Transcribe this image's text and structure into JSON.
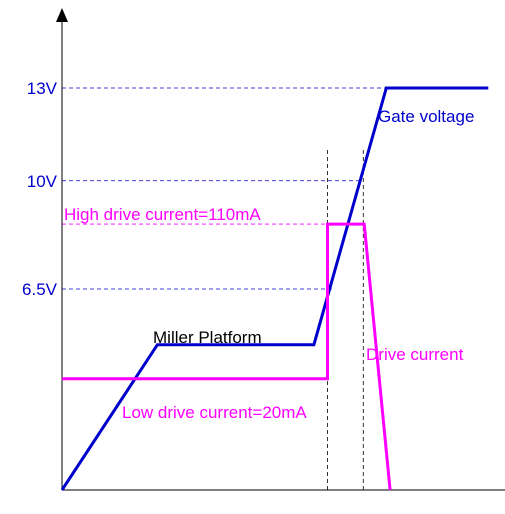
{
  "chart_data": {
    "type": "line",
    "title": "",
    "xlabel": "",
    "ylabel": "",
    "grid": false,
    "xlim": [
      0,
      100
    ],
    "ylim": [
      0,
      15.5
    ],
    "y_ticks": [
      {
        "value": 6.5,
        "label": "6.5V"
      },
      {
        "value": 10,
        "label": "10V"
      },
      {
        "value": 13,
        "label": "13V"
      }
    ],
    "reference_lines": {
      "vertical_x": [
        56.5,
        64.1
      ],
      "horizontal": [
        {
          "y": 13,
          "x_end": 69
        },
        {
          "y": 10,
          "x_end": 64.1
        },
        {
          "y": 8.6,
          "x_end": 56.5
        },
        {
          "y": 6.5,
          "x_end": 58.1
        }
      ]
    },
    "series": [
      {
        "name": "Gate voltage",
        "color": "#0000cc",
        "points": [
          [
            0,
            0
          ],
          [
            20.3,
            4.7
          ],
          [
            53.6,
            4.7
          ],
          [
            69,
            13
          ],
          [
            90.7,
            13
          ]
        ]
      },
      {
        "name": "Drive current",
        "color": "#ff00ff",
        "points": [
          [
            0,
            3.6
          ],
          [
            56.5,
            3.6
          ],
          [
            56.5,
            8.6
          ],
          [
            64.3,
            8.6
          ],
          [
            69.8,
            0
          ]
        ]
      }
    ],
    "annotations": [
      {
        "text": "High drive current=110mA",
        "color": "#ff00ff"
      },
      {
        "text": "Low drive current=20mA",
        "color": "#ff00ff"
      },
      {
        "text": "Miller Platform",
        "color": "#000000"
      }
    ]
  }
}
